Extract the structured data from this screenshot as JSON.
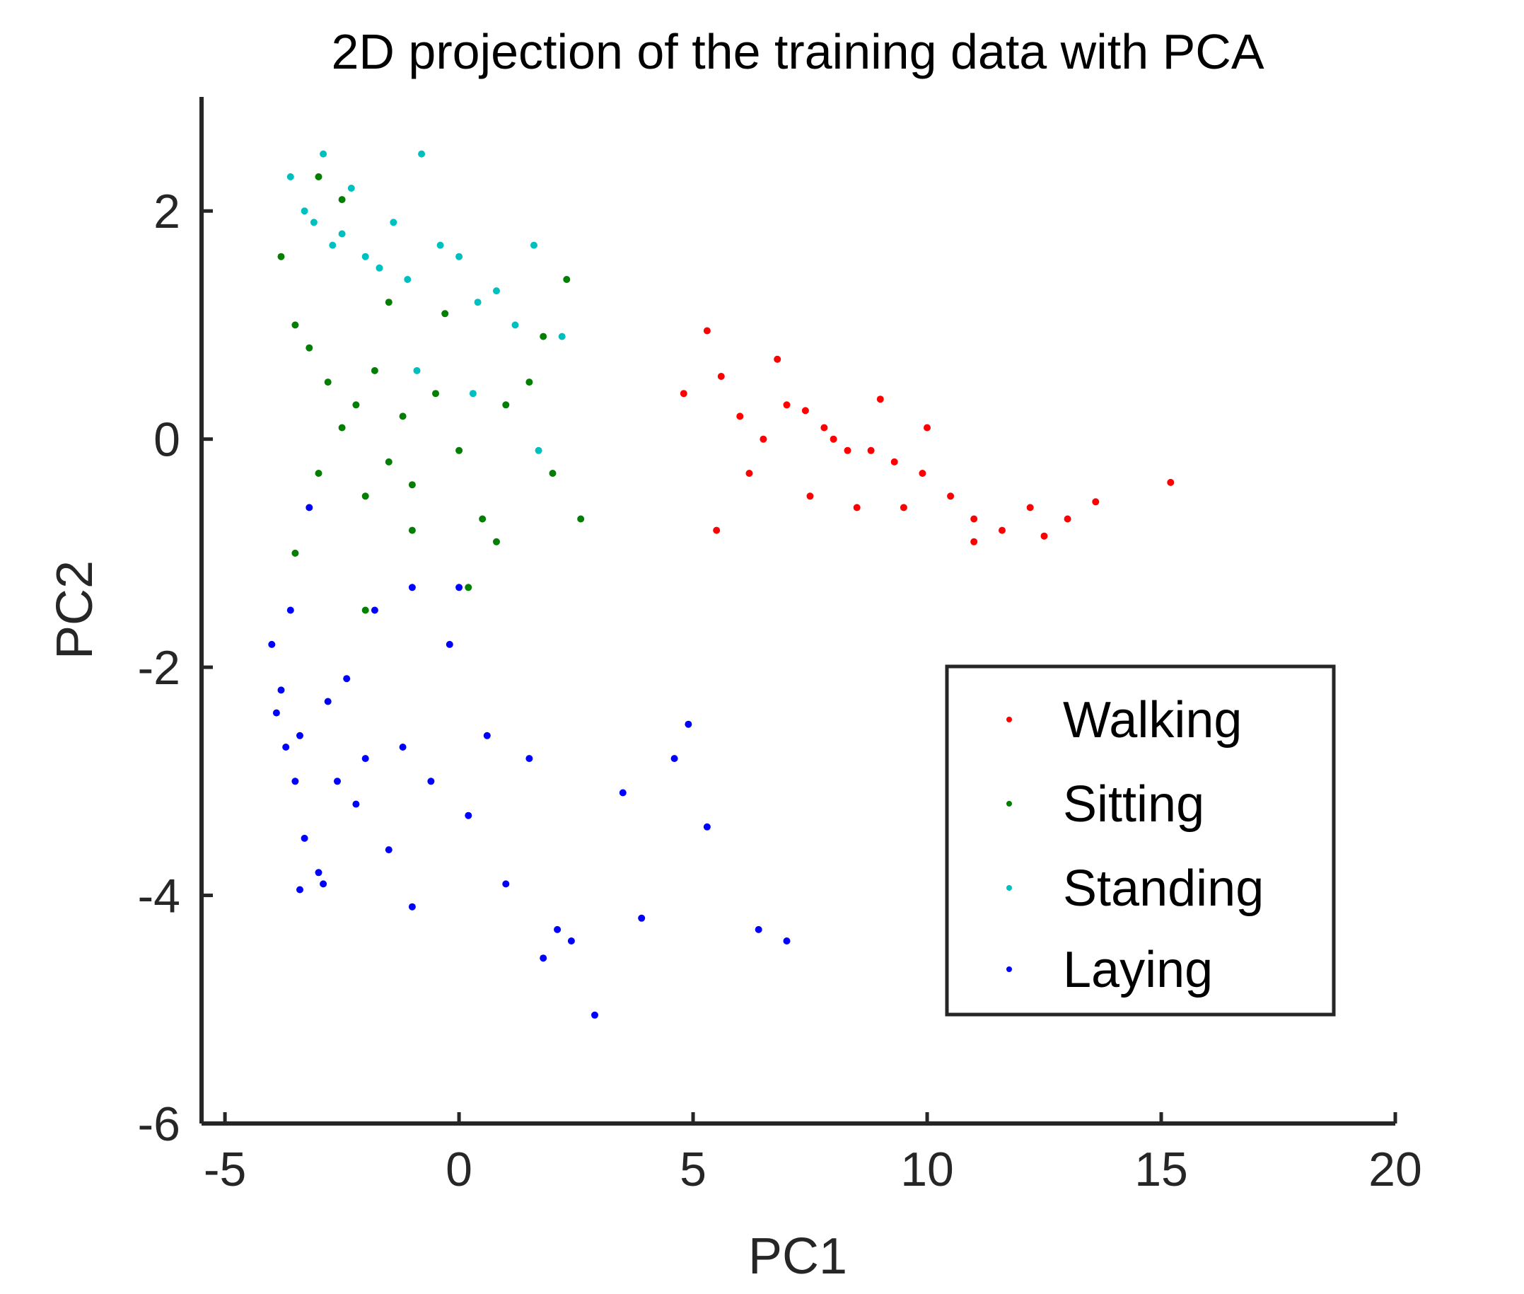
{
  "chart_data": {
    "type": "scatter",
    "title": "2D projection of the training data with PCA",
    "xlabel": "PC1",
    "ylabel": "PC2",
    "xlim": [
      -5.5,
      20
    ],
    "ylim": [
      -6,
      3
    ],
    "xticks": [
      -5,
      0,
      5,
      10,
      15,
      20
    ],
    "xtick_labels": [
      "-5",
      "0",
      "5",
      "10",
      "15",
      "20"
    ],
    "yticks": [
      -6,
      -4,
      -2,
      0,
      2
    ],
    "ytick_labels": [
      "-6",
      "-4",
      "-2",
      "0",
      "2"
    ],
    "grid": false,
    "legend_position": "lower-right",
    "series": [
      {
        "name": "Walking",
        "color": "#ff0000",
        "x": [
          5.3,
          5.6,
          6.0,
          6.5,
          7.0,
          7.4,
          7.8,
          8.0,
          8.3,
          8.8,
          9.3,
          9.9,
          10.5,
          11.0,
          11.6,
          12.2,
          13.0,
          13.6,
          15.2,
          4.8,
          5.5,
          6.8,
          7.5,
          8.5,
          9.0,
          10.0,
          11.0,
          12.5,
          6.2,
          9.5
        ],
        "y": [
          0.95,
          0.55,
          0.2,
          0.0,
          0.3,
          0.25,
          0.1,
          0.0,
          -0.1,
          -0.1,
          -0.2,
          -0.3,
          -0.5,
          -0.7,
          -0.8,
          -0.6,
          -0.7,
          -0.55,
          -0.38,
          0.4,
          -0.8,
          0.7,
          -0.5,
          -0.6,
          0.35,
          0.1,
          -0.9,
          -0.85,
          -0.3,
          -0.6
        ]
      },
      {
        "name": "Sitting",
        "color": "#007f00",
        "x": [
          -3.8,
          -3.5,
          -3.2,
          -3.0,
          -2.8,
          -2.5,
          -2.2,
          -2.0,
          -1.8,
          -1.5,
          -1.2,
          -1.0,
          -0.5,
          0.0,
          0.5,
          1.0,
          1.5,
          2.0,
          2.3,
          2.6,
          -3.0,
          -2.5,
          -1.5,
          -0.3,
          0.8,
          -3.5,
          -2.0,
          -1.0,
          0.2,
          1.8
        ],
        "y": [
          1.6,
          1.0,
          0.8,
          2.3,
          0.5,
          0.1,
          0.3,
          -0.5,
          0.6,
          -0.2,
          0.2,
          -0.4,
          0.4,
          -0.1,
          -0.7,
          0.3,
          0.5,
          -0.3,
          1.4,
          -0.7,
          -0.3,
          2.1,
          1.2,
          1.1,
          -0.9,
          -1.0,
          -1.5,
          -0.8,
          -1.3,
          0.9
        ]
      },
      {
        "name": "Standing",
        "color": "#00bfbf",
        "x": [
          -3.6,
          -3.3,
          -3.1,
          -2.9,
          -2.7,
          -2.5,
          -2.3,
          -2.0,
          -1.7,
          -1.4,
          -1.1,
          -0.8,
          -0.4,
          0.0,
          0.4,
          0.8,
          1.2,
          1.6,
          2.2,
          -0.9,
          0.3,
          1.7
        ],
        "y": [
          2.3,
          2.0,
          1.9,
          2.5,
          1.7,
          1.8,
          2.2,
          1.6,
          1.5,
          1.9,
          1.4,
          2.5,
          1.7,
          1.6,
          1.2,
          1.3,
          1.0,
          1.7,
          0.9,
          0.6,
          0.4,
          -0.1
        ]
      },
      {
        "name": "Laying",
        "color": "#0000ff",
        "x": [
          -4.0,
          -3.9,
          -3.8,
          -3.7,
          -3.6,
          -3.5,
          -3.4,
          -3.3,
          -3.2,
          -3.0,
          -2.8,
          -2.6,
          -2.4,
          -2.2,
          -2.0,
          -1.8,
          -1.5,
          -1.2,
          -1.0,
          -0.6,
          -0.2,
          0.2,
          0.6,
          1.0,
          1.5,
          1.8,
          2.1,
          2.4,
          2.9,
          3.5,
          3.9,
          4.6,
          4.9,
          5.3,
          6.4,
          7.0,
          -3.4,
          -2.9,
          -1.0,
          0.0
        ],
        "y": [
          -1.8,
          -2.4,
          -2.2,
          -2.7,
          -1.5,
          -3.0,
          -2.6,
          -3.5,
          -0.6,
          -3.8,
          -2.3,
          -3.0,
          -2.1,
          -3.2,
          -2.8,
          -1.5,
          -3.6,
          -2.7,
          -1.3,
          -3.0,
          -1.8,
          -3.3,
          -2.6,
          -3.9,
          -2.8,
          -4.55,
          -4.3,
          -4.4,
          -5.05,
          -3.1,
          -4.2,
          -2.8,
          -2.5,
          -3.4,
          -4.3,
          -4.4,
          -3.95,
          -3.9,
          -4.1,
          -1.3
        ]
      }
    ]
  }
}
